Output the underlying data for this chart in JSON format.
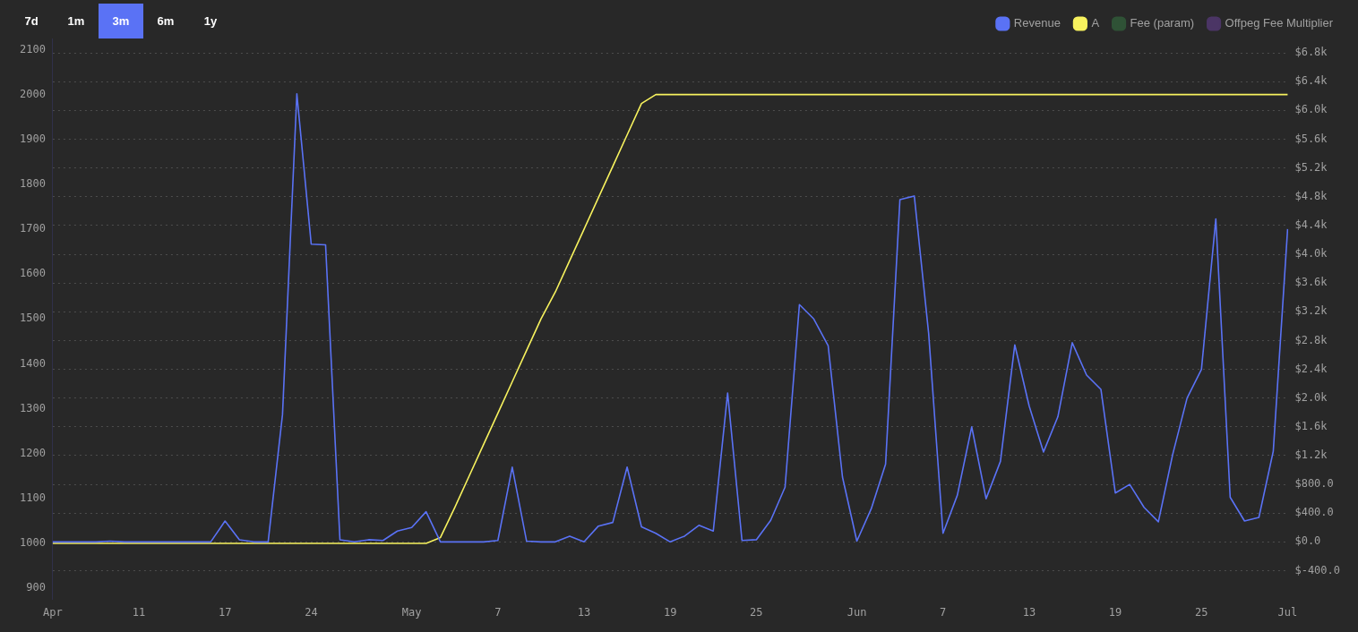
{
  "chart_data": {
    "type": "line",
    "categories": [
      "Apr",
      null,
      null,
      null,
      null,
      null,
      "11",
      null,
      null,
      null,
      null,
      null,
      "17",
      null,
      null,
      null,
      null,
      null,
      "24",
      null,
      null,
      null,
      null,
      null,
      null,
      "May",
      null,
      null,
      null,
      null,
      null,
      "7",
      null,
      null,
      null,
      null,
      null,
      "13",
      null,
      null,
      null,
      null,
      null,
      "19",
      null,
      null,
      null,
      null,
      null,
      "25",
      null,
      null,
      null,
      null,
      null,
      null,
      "Jun",
      null,
      null,
      null,
      null,
      null,
      "7",
      null,
      null,
      null,
      null,
      null,
      "13",
      null,
      null,
      null,
      null,
      null,
      "19",
      null,
      null,
      null,
      null,
      null,
      "25",
      null,
      null,
      null,
      null,
      null,
      "Jul"
    ],
    "series": [
      {
        "name": "Revenue",
        "color": "#5a72f5",
        "axis": "y2",
        "values": [
          0,
          0,
          0,
          0,
          10,
          0,
          0,
          0,
          0,
          0,
          0,
          0,
          290,
          30,
          0,
          0,
          1770,
          6230,
          4140,
          4130,
          30,
          0,
          30,
          20,
          150,
          200,
          420,
          0,
          0,
          0,
          0,
          20,
          1040,
          10,
          0,
          0,
          80,
          0,
          220,
          270,
          1040,
          210,
          120,
          0,
          80,
          230,
          150,
          2070,
          20,
          30,
          300,
          760,
          3300,
          3100,
          2730,
          900,
          10,
          460,
          1080,
          4760,
          4810,
          2900,
          120,
          650,
          1600,
          600,
          1120,
          2740,
          1890,
          1250,
          1740,
          2770,
          2320,
          2120,
          680,
          800,
          480,
          280,
          1220,
          2000,
          2400,
          4490,
          620,
          290,
          340,
          1260,
          4350
        ]
      },
      {
        "name": "A",
        "color": "#f7f25e",
        "axis": "y",
        "values": [
          1000,
          1000,
          1000,
          1000,
          1000,
          1000,
          1000,
          1000,
          1000,
          1000,
          1000,
          1000,
          1000,
          1000,
          1000,
          1000,
          1000,
          1000,
          1000,
          1000,
          1000,
          1000,
          1000,
          1000,
          1000,
          1000,
          1000,
          1013,
          1080,
          1150,
          1220,
          1290,
          1360,
          1430,
          1500,
          1560,
          1630,
          1700,
          1770,
          1840,
          1910,
          1980,
          2000,
          2000,
          2000,
          2000,
          2000,
          2000,
          2000,
          2000,
          2000,
          2000,
          2000,
          2000,
          2000,
          2000,
          2000,
          2000,
          2000,
          2000,
          2000,
          2000,
          2000,
          2000,
          2000,
          2000,
          2000,
          2000,
          2000,
          2000,
          2000,
          2000,
          2000,
          2000,
          2000,
          2000,
          2000,
          2000,
          2000,
          2000,
          2000,
          2000,
          2000,
          2000,
          2000,
          2000,
          2000
        ]
      },
      {
        "name": "Fee (param)",
        "color": "#2f5236",
        "axis": "y",
        "values": [
          null,
          null,
          null,
          null,
          null,
          null,
          null,
          null,
          null,
          null,
          null,
          null,
          null,
          null,
          null,
          null,
          null,
          null,
          null,
          null,
          null,
          null,
          null,
          null,
          null,
          null,
          null,
          null,
          null,
          null,
          null,
          null,
          null,
          null,
          null,
          null,
          null,
          null,
          null,
          null,
          null,
          null,
          null,
          null,
          null,
          null,
          null,
          null,
          null,
          null,
          null,
          null,
          null,
          null,
          null,
          null,
          null,
          null,
          null,
          null,
          null,
          null,
          null,
          null,
          null,
          null,
          null,
          null,
          null,
          null,
          null,
          null,
          null,
          null,
          null,
          null,
          null,
          null,
          null,
          null,
          null,
          null,
          null,
          null,
          null,
          null,
          null
        ]
      },
      {
        "name": "Offpeg Fee Multiplier",
        "color": "#4b3565",
        "axis": "y",
        "values": [
          null,
          null,
          null,
          null,
          null,
          null,
          null,
          null,
          null,
          null,
          null,
          null,
          null,
          null,
          null,
          null,
          null,
          null,
          null,
          null,
          null,
          null,
          null,
          null,
          null,
          null,
          null,
          null,
          null,
          null,
          null,
          null,
          null,
          null,
          null,
          null,
          null,
          null,
          null,
          null,
          null,
          null,
          null,
          null,
          null,
          null,
          null,
          null,
          null,
          null,
          null,
          null,
          null,
          null,
          null,
          null,
          null,
          null,
          null,
          null,
          null,
          null,
          null,
          null,
          null,
          null,
          null,
          null,
          null,
          null,
          null,
          null,
          null,
          null,
          null,
          null,
          null,
          null,
          null,
          null,
          null,
          null,
          null,
          null,
          null,
          null,
          null
        ]
      }
    ],
    "ylim": [
      875,
      2125
    ],
    "yticks": [
      900,
      1000,
      1100,
      1200,
      1300,
      1400,
      1500,
      1600,
      1700,
      1800,
      1900,
      2000,
      2100
    ],
    "y2lim": [
      -800,
      7000
    ],
    "y2ticks": [
      {
        "value": -400,
        "label": "$-400.0"
      },
      {
        "value": 0,
        "label": "$0.0"
      },
      {
        "value": 400,
        "label": "$400.0"
      },
      {
        "value": 800,
        "label": "$800.0"
      },
      {
        "value": 1200,
        "label": "$1.2k"
      },
      {
        "value": 1600,
        "label": "$1.6k"
      },
      {
        "value": 2000,
        "label": "$2.0k"
      },
      {
        "value": 2400,
        "label": "$2.4k"
      },
      {
        "value": 2800,
        "label": "$2.8k"
      },
      {
        "value": 3200,
        "label": "$3.2k"
      },
      {
        "value": 3600,
        "label": "$3.6k"
      },
      {
        "value": 4000,
        "label": "$4.0k"
      },
      {
        "value": 4400,
        "label": "$4.4k"
      },
      {
        "value": 4800,
        "label": "$4.8k"
      },
      {
        "value": 5200,
        "label": "$5.2k"
      },
      {
        "value": 5600,
        "label": "$5.6k"
      },
      {
        "value": 6000,
        "label": "$6.0k"
      },
      {
        "value": 6400,
        "label": "$6.4k"
      },
      {
        "value": 6800,
        "label": "$6.8k"
      }
    ],
    "annotations": [
      "7d",
      "1m",
      "3m",
      "6m",
      "1y"
    ],
    "grid": "y",
    "legend": "top right",
    "marker": "none"
  }
}
